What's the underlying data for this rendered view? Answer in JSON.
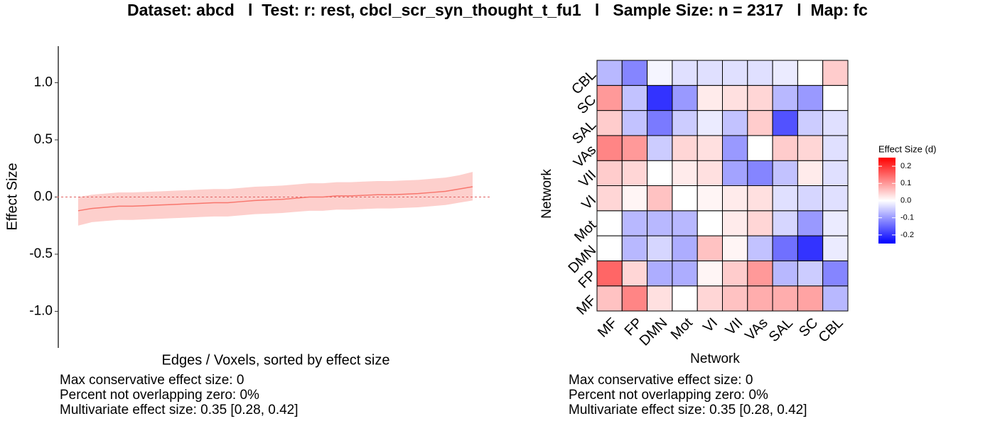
{
  "title": "Dataset: abcd   l  Test: r: rest, cbcl_scr_syn_thought_t_fu1   l   Sample Size: n = 2317   l  Map: fc",
  "chart_data": [
    {
      "type": "ribbon-line",
      "xlabel": "Edges / Voxels, sorted by effect size",
      "ylabel": "Effect Size",
      "ylim": [
        -1.32,
        1.32
      ],
      "yticks": [
        {
          "value": 1,
          "label": "1.0"
        },
        0.5,
        {
          "value": 0,
          "label": "0.0"
        },
        -0.5,
        {
          "value": -1,
          "label": "-1.0"
        }
      ],
      "reference_line": 0,
      "color": "#f8766d",
      "values": [
        -0.12,
        -0.1,
        -0.09,
        -0.08,
        -0.08,
        -0.075,
        -0.07,
        -0.065,
        -0.06,
        -0.055,
        -0.05,
        -0.05,
        -0.04,
        -0.03,
        -0.025,
        -0.02,
        -0.01,
        0.0,
        0.0,
        0.01,
        0.01,
        0.015,
        0.02,
        0.02,
        0.025,
        0.03,
        0.04,
        0.05,
        0.07,
        0.09
      ],
      "lower": [
        -0.25,
        -0.22,
        -0.21,
        -0.2,
        -0.2,
        -0.195,
        -0.19,
        -0.185,
        -0.18,
        -0.175,
        -0.17,
        -0.17,
        -0.16,
        -0.15,
        -0.145,
        -0.14,
        -0.13,
        -0.12,
        -0.12,
        -0.11,
        -0.11,
        -0.105,
        -0.1,
        -0.1,
        -0.095,
        -0.09,
        -0.08,
        -0.07,
        -0.05,
        -0.03
      ],
      "upper": [
        0.0,
        0.02,
        0.03,
        0.04,
        0.04,
        0.045,
        0.05,
        0.055,
        0.06,
        0.065,
        0.07,
        0.07,
        0.08,
        0.09,
        0.095,
        0.1,
        0.11,
        0.12,
        0.12,
        0.13,
        0.13,
        0.135,
        0.14,
        0.14,
        0.145,
        0.15,
        0.16,
        0.17,
        0.19,
        0.22
      ],
      "annotations": [
        "Max conservative effect size: 0",
        "Percent not overlapping zero: 0%",
        "Multivariate effect size: 0.35 [0.28, 0.42]"
      ]
    },
    {
      "type": "heatmap",
      "xlabel": "Network",
      "ylabel": "Network",
      "legend_title": "Effect Size (d)",
      "x_categories": [
        "MF",
        "FP",
        "DMN",
        "Mot",
        "VI",
        "VII",
        "VAs",
        "SAL",
        "SC",
        "CBL"
      ],
      "y_categories": [
        "MF",
        "FP",
        "DMN",
        "Mot",
        "VI",
        "VII",
        "VAs",
        "SAL",
        "SC",
        "CBL"
      ],
      "colors": [
        "#0000ff",
        "#ffffff",
        "#ff0000"
      ],
      "clim": [
        -0.25,
        0.25
      ],
      "cticks": [
        0.2,
        0.1,
        {
          "value": 0,
          "label": "0.0"
        },
        -0.1,
        -0.2
      ],
      "values": [
        [
          0.06,
          0.12,
          0.03,
          0.0,
          0.04,
          0.06,
          0.08,
          0.08,
          0.09,
          -0.07
        ],
        [
          0.15,
          0.04,
          -0.08,
          -0.08,
          0.01,
          0.05,
          0.1,
          -0.07,
          -0.05,
          -0.12
        ],
        [
          0.0,
          -0.07,
          -0.04,
          -0.08,
          0.06,
          0.01,
          -0.06,
          -0.14,
          -0.2,
          -0.02
        ],
        [
          0.0,
          -0.07,
          -0.07,
          -0.07,
          0.0,
          0.02,
          0.04,
          -0.04,
          -0.1,
          -0.02
        ],
        [
          0.04,
          0.01,
          0.06,
          0.0,
          0.01,
          0.02,
          0.03,
          -0.03,
          -0.04,
          -0.03
        ],
        [
          0.05,
          0.04,
          0.0,
          0.02,
          0.03,
          -0.09,
          -0.12,
          -0.06,
          0.02,
          -0.03
        ],
        [
          0.12,
          0.1,
          -0.05,
          0.04,
          0.03,
          -0.1,
          0.0,
          0.05,
          0.04,
          -0.03
        ],
        [
          0.05,
          -0.06,
          -0.13,
          -0.05,
          -0.02,
          -0.06,
          0.05,
          -0.17,
          -0.05,
          -0.03
        ],
        [
          0.1,
          -0.06,
          -0.2,
          -0.1,
          0.02,
          0.03,
          0.04,
          -0.07,
          -0.1,
          0.0
        ],
        [
          -0.07,
          -0.12,
          -0.01,
          -0.03,
          -0.03,
          -0.03,
          -0.03,
          -0.02,
          0.0,
          0.05
        ]
      ],
      "annotations": [
        "Max conservative effect size: 0",
        "Percent not overlapping zero: 0%",
        "Multivariate effect size: 0.35 [0.28, 0.42]"
      ]
    }
  ]
}
